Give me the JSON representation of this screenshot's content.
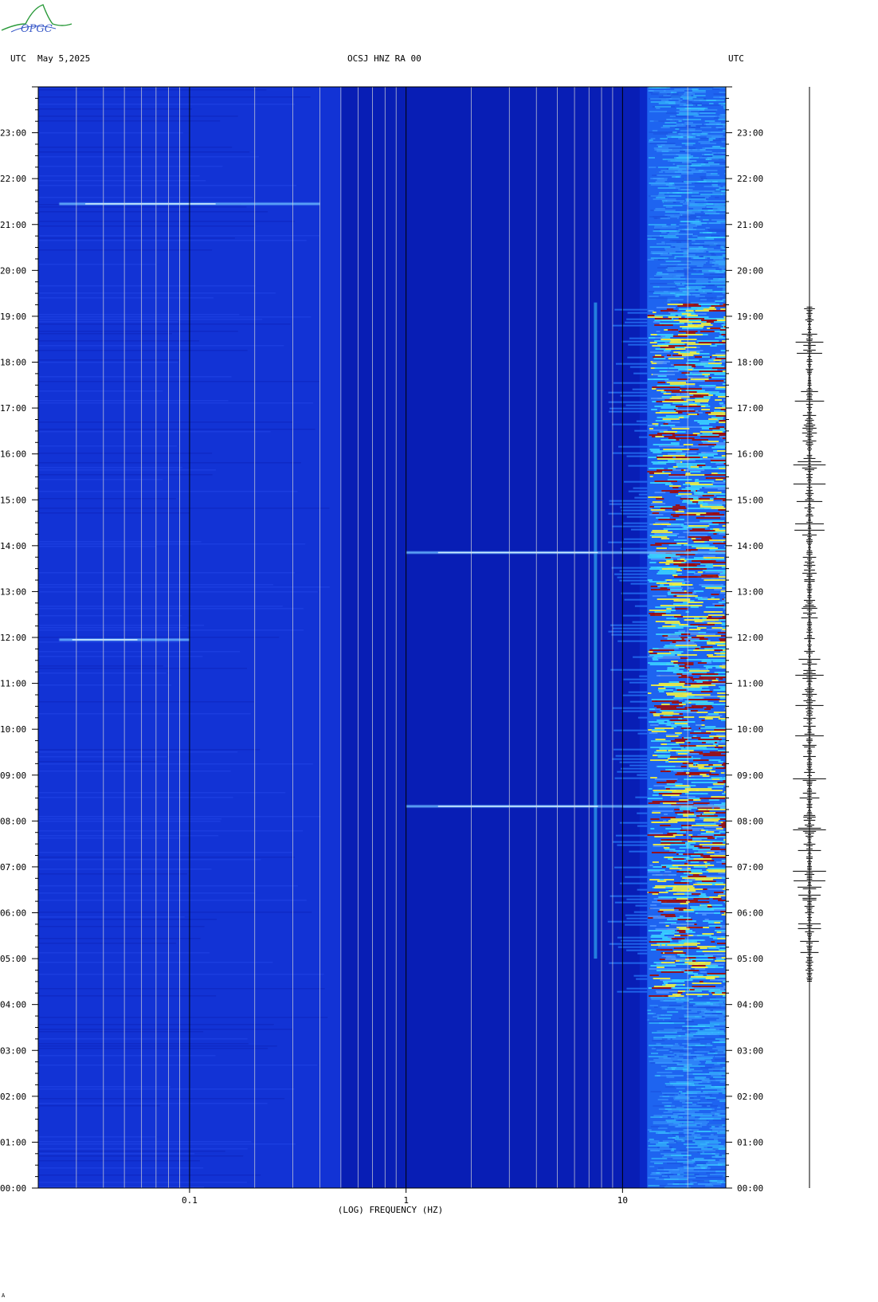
{
  "header": {
    "left_label": "UTC",
    "date": "May 5,2025",
    "station": "OCSJ HNZ RA 00",
    "right_label": "UTC"
  },
  "logo_text": "OPGC",
  "corner_mark": "A",
  "colors": {
    "background_blue": "#0a28c8",
    "dark_blue": "#0718a8",
    "cyan": "#3ad0ff",
    "yellow": "#f0f040",
    "red": "#a00a0a",
    "grid_line": "#d8d8d8",
    "decade_line": "#000000",
    "logo_green": "#2a9a3a",
    "logo_blue": "#3a5ac8"
  },
  "chart_data": {
    "type": "heatmap",
    "title": "OCSJ HNZ RA 00",
    "xlabel": "(LOG) FREQUENCY (HZ)",
    "ylabel": "",
    "x_scale": "log",
    "xlim": [
      0.02,
      30
    ],
    "x_ticks": [
      {
        "value": 0.1,
        "label": "0.1"
      },
      {
        "value": 1,
        "label": "1"
      },
      {
        "value": 10,
        "label": "10"
      }
    ],
    "x_grid": [
      0.03,
      0.04,
      0.05,
      0.06,
      0.07,
      0.08,
      0.09,
      0.2,
      0.3,
      0.4,
      0.5,
      0.6,
      0.7,
      0.8,
      0.9,
      2,
      3,
      4,
      5,
      6,
      7,
      8,
      9,
      20
    ],
    "ylim": [
      0,
      24
    ],
    "y_ticks": [
      {
        "value": 0,
        "label": "00:00"
      },
      {
        "value": 1,
        "label": "01:00"
      },
      {
        "value": 2,
        "label": "02:00"
      },
      {
        "value": 3,
        "label": "03:00"
      },
      {
        "value": 4,
        "label": "04:00"
      },
      {
        "value": 5,
        "label": "05:00"
      },
      {
        "value": 6,
        "label": "06:00"
      },
      {
        "value": 7,
        "label": "07:00"
      },
      {
        "value": 8,
        "label": "08:00"
      },
      {
        "value": 9,
        "label": "09:00"
      },
      {
        "value": 10,
        "label": "10:00"
      },
      {
        "value": 11,
        "label": "11:00"
      },
      {
        "value": 12,
        "label": "12:00"
      },
      {
        "value": 13,
        "label": "13:00"
      },
      {
        "value": 14,
        "label": "14:00"
      },
      {
        "value": 15,
        "label": "15:00"
      },
      {
        "value": 16,
        "label": "16:00"
      },
      {
        "value": 17,
        "label": "17:00"
      },
      {
        "value": 18,
        "label": "18:00"
      },
      {
        "value": 19,
        "label": "19:00"
      },
      {
        "value": 20,
        "label": "20:00"
      },
      {
        "value": 21,
        "label": "21:00"
      },
      {
        "value": 22,
        "label": "22:00"
      },
      {
        "value": 23,
        "label": "23:00"
      }
    ],
    "energy_band": {
      "freq_min": 13,
      "freq_max": 30,
      "active_hours": [
        4.2,
        19.3
      ]
    },
    "spectral_line": {
      "freq": 7.5,
      "hours": [
        5,
        19.3
      ]
    },
    "transients": [
      {
        "hour": 21.45,
        "freq_min": 0.025,
        "freq_max": 0.4
      },
      {
        "hour": 11.95,
        "freq_min": 0.025,
        "freq_max": 0.1
      },
      {
        "hour": 13.85,
        "freq_min": 1,
        "freq_max": 30
      },
      {
        "hour": 8.32,
        "freq_min": 1,
        "freq_max": 30
      }
    ],
    "seismogram_hours": [
      4.5,
      19.2
    ]
  }
}
